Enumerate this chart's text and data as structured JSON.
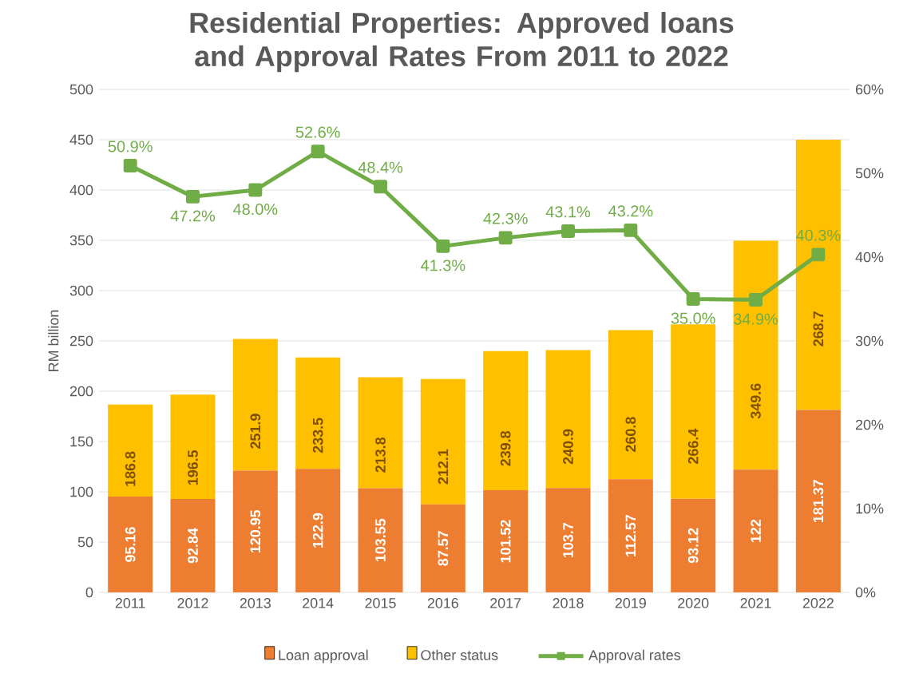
{
  "chart_data": {
    "type": "bar",
    "title": "Residential Properties: Approved loans and Approval Rates From 2011 to 2022",
    "ylabel": "RM billion",
    "categories": [
      "2011",
      "2012",
      "2013",
      "2014",
      "2015",
      "2016",
      "2017",
      "2018",
      "2019",
      "2020",
      "2021",
      "2022"
    ],
    "stacked": true,
    "series": [
      {
        "name": "Loan approval",
        "color": "#ed7d31",
        "values": [
          95.16,
          92.84,
          120.95,
          122.9,
          103.55,
          87.57,
          101.52,
          103.7,
          112.57,
          93.12,
          122,
          181.37
        ],
        "value_labels": [
          "95.16",
          "92.84",
          "120.95",
          "122.9",
          "103.55",
          "87.57",
          "101.52",
          "103.7",
          "112.57",
          "93.12",
          "122",
          "181.37"
        ]
      },
      {
        "name": "Other status",
        "color": "#ffc000",
        "values": [
          91.6,
          103.7,
          131.0,
          110.6,
          110.3,
          124.5,
          138.3,
          137.2,
          148.2,
          173.3,
          227.6,
          268.7
        ],
        "value_labels": [
          null,
          null,
          null,
          null,
          null,
          null,
          null,
          null,
          null,
          null,
          null,
          "268.7"
        ]
      },
      {
        "name": "Approval rates",
        "type": "line",
        "axis": "y2",
        "color": "#70ad47",
        "marker": "square",
        "values": [
          50.9,
          47.2,
          48.0,
          52.6,
          48.4,
          41.3,
          42.3,
          43.1,
          43.2,
          35.0,
          34.9,
          40.3
        ],
        "value_labels": [
          "50.9%",
          "47.2%",
          "48.0%",
          "52.6%",
          "48.4%",
          "41.3%",
          "42.3%",
          "43.1%",
          "43.2%",
          "35.0%",
          "34.9%",
          "40.3%"
        ]
      }
    ],
    "totals": [
      "186.8",
      "196.5",
      "251.9",
      "233.5",
      "213.8",
      "212.1",
      "239.8",
      "240.9",
      "260.8",
      "266.4",
      "349.6",
      null
    ],
    "ylim": [
      0,
      500
    ],
    "yticks": [
      0,
      50,
      100,
      150,
      200,
      250,
      300,
      350,
      400,
      450,
      500
    ],
    "y2lim": [
      0,
      60
    ],
    "y2ticks": [
      {
        "value": 0,
        "label": "0%"
      },
      {
        "value": 10,
        "label": "10%"
      },
      {
        "value": 20,
        "label": "20%"
      },
      {
        "value": 30,
        "label": "30%"
      },
      {
        "value": 40,
        "label": "40%"
      },
      {
        "value": 50,
        "label": "50%"
      },
      {
        "value": 60,
        "label": "60%"
      }
    ],
    "grid": "y",
    "legend": "bottom"
  }
}
